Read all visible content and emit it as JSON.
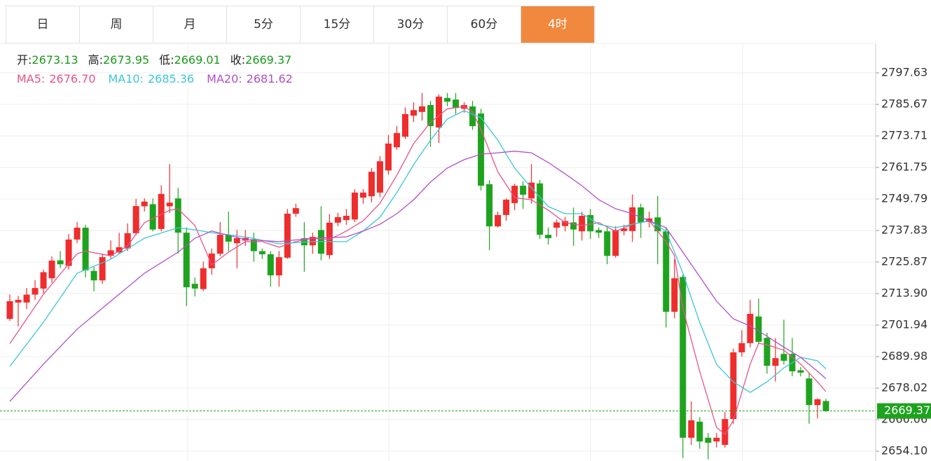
{
  "tabs": [
    {
      "label": "日",
      "active": false
    },
    {
      "label": "周",
      "active": false
    },
    {
      "label": "月",
      "active": false
    },
    {
      "label": "5分",
      "active": false
    },
    {
      "label": "15分",
      "active": false
    },
    {
      "label": "30分",
      "active": false
    },
    {
      "label": "60分",
      "active": false
    },
    {
      "label": "4时",
      "active": true
    }
  ],
  "chart_data": {
    "type": "candlestick",
    "info_labels": {
      "open": "开:",
      "high": "高:",
      "low": "低:",
      "close": "收:"
    },
    "up_color": "#ee2d2d",
    "down_color": "#1fa31f",
    "grid": true,
    "ylim": [
      2650.38,
      2808.79
    ],
    "yticks": [
      2797.63,
      2785.67,
      2773.71,
      2761.75,
      2749.79,
      2737.83,
      2725.87,
      {
        "value": 2713.9,
        "label": "2713.90"
      },
      2701.94,
      2689.98,
      2678.02,
      2666.06,
      {
        "value": 2654.1,
        "label": "2654.10"
      }
    ],
    "open": [
      2704.3,
      2710.5,
      2710.5,
      2713.5,
      2715.8,
      2719.7,
      2726.5,
      2724.4,
      2734.4,
      2738.9,
      2722.5,
      2718.9,
      2728.2,
      2729.5,
      2731,
      2736.8,
      2747,
      2747.8,
      2738.4,
      2747,
      2750,
      2737,
      2717.6,
      2715.6,
      2723.5,
      2729,
      2736.2,
      2733,
      2734,
      2734.5,
      2730,
      2728.8,
      2720.8,
      2727.5,
      2744.2,
      2734.9,
      2732.2,
      2738,
      2728.5,
      2740.8,
      2741.8,
      2742,
      2750.3,
      2750.8,
      2752.2,
      2760.6,
      2769.4,
      2773.4,
      2781.4,
      2782.8,
      2785.4,
      2776.9,
      2788.1,
      2787.5,
      2784,
      2784.9,
      2782.2,
      2755.4,
      2739.4,
      2743.7,
      2748.2,
      2754.8,
      2750,
      2755.7,
      2736.2,
      2738.9,
      2739.5,
      2740.9,
      2737.5,
      2743.7,
      2738,
      2737.5,
      2728.2,
      2737.6,
      2737.6,
      2746.6,
      2741,
      2742.8,
      2737.5,
      2707,
      2720.2,
      2659.2,
      2665.3,
      2659.2,
      2657.8,
      2656.5,
      2666.3,
      2691.6,
      2695.1,
      2705.2,
      2697.1,
      2686.5,
      2691,
      2691,
      2684.8,
      2681.7,
      2671.6,
      2673.13
    ],
    "high": [
      2713.5,
      2713,
      2716,
      2719,
      2723,
      2728,
      2730,
      2736.5,
      2741,
      2740,
      2724,
      2729,
      2734,
      2737,
      2740.5,
      2749.8,
      2750,
      2750,
      2755,
      2763,
      2754,
      2739,
      2720,
      2726,
      2731,
      2741,
      2745,
      2738,
      2738,
      2737,
      2731,
      2730,
      2730,
      2746,
      2748,
      2741,
      2737,
      2747,
      2744,
      2744.5,
      2746,
      2753.5,
      2753.5,
      2761.5,
      2766,
      2774,
      2777.5,
      2784.5,
      2786.5,
      2790,
      2787,
      2789.5,
      2790,
      2790,
      2786.5,
      2787,
      2784,
      2757,
      2745,
      2750,
      2755.5,
      2756.5,
      2763,
      2757,
      2739,
      2742,
      2743,
      2746.5,
      2745,
      2746,
      2739,
      2739,
      2739.5,
      2740,
      2751.5,
      2748,
      2745,
      2751,
      2739,
      2727,
      2721,
      2673,
      2667,
      2661,
      2661,
      2669,
      2693,
      2700,
      2711.5,
      2712,
      2699,
      2697,
      2704,
      2697,
      2686,
      2684,
      2674.2,
      2673.95
    ],
    "low": [
      2703.5,
      2701.5,
      2708,
      2711.5,
      2714,
      2718,
      2723.5,
      2723,
      2733,
      2720,
      2714.7,
      2717.5,
      2727,
      2729,
      2730,
      2736,
      2745,
      2737.5,
      2737.5,
      2744.5,
      2729,
      2709.2,
      2712.8,
      2714.8,
      2721,
      2728,
      2730,
      2723.5,
      2732,
      2726,
      2727,
      2716.5,
      2716.5,
      2727,
      2743,
      2722.2,
      2729,
      2726.5,
      2727,
      2739.5,
      2740,
      2741,
      2748,
      2748.5,
      2750.5,
      2759,
      2768.5,
      2772.5,
      2779,
      2779.5,
      2769.5,
      2771,
      2785,
      2782,
      2782.5,
      2776,
      2753,
      2730.4,
      2739,
      2741.5,
      2745.5,
      2746,
      2748,
      2734.6,
      2732.5,
      2735.5,
      2737.5,
      2732,
      2734,
      2734.6,
      2735,
      2725,
      2727.5,
      2736,
      2733.5,
      2735,
      2739,
      2725,
      2701,
      2704.5,
      2651.5,
      2656.5,
      2655,
      2651,
      2655.5,
      2655.5,
      2664.5,
      2690,
      2693.5,
      2695,
      2683.5,
      2680.5,
      2687,
      2682.5,
      2682.5,
      2664.5,
      2666.5,
      2669.01
    ],
    "close": [
      2711,
      2711.5,
      2713.5,
      2716,
      2722,
      2726.4,
      2725,
      2734.4,
      2738.9,
      2722.7,
      2718.9,
      2727.7,
      2730.3,
      2731.5,
      2736.8,
      2747.1,
      2748.8,
      2738.2,
      2751.7,
      2748.4,
      2737,
      2716.3,
      2715.8,
      2723.5,
      2729.1,
      2736.2,
      2733.6,
      2734.9,
      2735,
      2730,
      2728.8,
      2720.8,
      2727.7,
      2744.2,
      2746.3,
      2732.2,
      2735.4,
      2729,
      2740.8,
      2742.9,
      2743.4,
      2752.2,
      2752.2,
      2760.1,
      2764.1,
      2770.8,
      2774.8,
      2782,
      2783.5,
      2784.9,
      2777.4,
      2788.6,
      2786.7,
      2784.3,
      2785.4,
      2777.4,
      2754.8,
      2739.4,
      2743.7,
      2749.5,
      2754.8,
      2751.4,
      2756,
      2736.2,
      2734.9,
      2740.9,
      2741.4,
      2738.2,
      2743.4,
      2737.5,
      2737,
      2728.2,
      2738,
      2738.6,
      2746.6,
      2740.9,
      2742.4,
      2737.5,
      2707,
      2719.7,
      2659.2,
      2665.8,
      2657.8,
      2657.3,
      2659.2,
      2666.3,
      2691.6,
      2695.1,
      2706.2,
      2695.6,
      2686.5,
      2689.4,
      2688.4,
      2684.4,
      2683.9,
      2671.6,
      2673.8,
      2669.37
    ],
    "series": [
      {
        "name": "MA5:",
        "color": "#e8538a",
        "current": "2676.70",
        "x": [
          0,
          4,
          8,
          9,
          12,
          14,
          16,
          19,
          20,
          22,
          23,
          24,
          26,
          28,
          30,
          32,
          34,
          36,
          38,
          40,
          42,
          44,
          46,
          48,
          50,
          52,
          54,
          55,
          56,
          58,
          60,
          62,
          64,
          66,
          68,
          70,
          72,
          74,
          76,
          78,
          79,
          80,
          82,
          84,
          85,
          86,
          88,
          89,
          90,
          92,
          94,
          96,
          97
        ],
        "values": [
          2694.9,
          2713.6,
          2729,
          2730,
          2728.2,
          2732,
          2740.8,
          2745.5,
          2746,
          2739.7,
          2732.3,
          2724.8,
          2729.6,
          2733.6,
          2733.6,
          2731.5,
          2733.6,
          2734.9,
          2734.4,
          2737.6,
          2741.5,
          2748.2,
          2758.8,
          2770.8,
          2778.8,
          2784,
          2784.9,
          2782.8,
          2776.1,
          2760.1,
          2750.3,
          2749.5,
          2745.5,
          2740.8,
          2739.7,
          2740.8,
          2737.5,
          2740.2,
          2741.5,
          2733.6,
          2728.3,
          2708.3,
          2684.4,
          2663.1,
          2660.5,
          2665.8,
          2687.1,
          2695,
          2694.5,
          2692.4,
          2687.1,
          2680.4,
          2676.7
        ]
      },
      {
        "name": "MA10:",
        "color": "#3cc6d6",
        "current": "2685.36",
        "x": [
          0,
          4,
          8,
          12,
          16,
          20,
          22,
          24,
          28,
          32,
          36,
          40,
          42,
          44,
          46,
          48,
          50,
          52,
          54,
          56,
          58,
          60,
          62,
          64,
          66,
          68,
          70,
          72,
          74,
          76,
          78,
          80,
          82,
          84,
          86,
          88,
          90,
          92,
          94,
          96,
          97
        ],
        "values": [
          2686.3,
          2703,
          2721.6,
          2726.9,
          2734.9,
          2738.9,
          2738.1,
          2737,
          2735.4,
          2732.8,
          2733.6,
          2733.6,
          2737.6,
          2742.9,
          2752.2,
          2762.8,
          2772.1,
          2780.1,
          2783.3,
          2780.6,
          2772.1,
          2761.5,
          2754,
          2746.9,
          2744.2,
          2744.2,
          2740.2,
          2738.9,
          2740.2,
          2741.5,
          2737.6,
          2721.6,
          2703,
          2687,
          2680.4,
          2676.4,
          2680.4,
          2685.7,
          2689.7,
          2688.4,
          2685.36
        ]
      },
      {
        "name": "MA20:",
        "color": "#b04fc8",
        "current": "2681.62",
        "x": [
          0,
          4,
          8,
          12,
          16,
          20,
          22,
          24,
          28,
          32,
          36,
          40,
          42,
          44,
          46,
          48,
          50,
          52,
          54,
          56,
          58,
          60,
          62,
          64,
          66,
          68,
          70,
          72,
          74,
          76,
          78,
          80,
          82,
          84,
          86,
          88,
          90,
          92,
          94,
          96,
          97
        ],
        "values": [
          2673,
          2687.1,
          2700.4,
          2711,
          2721.6,
          2729.6,
          2734.9,
          2737.6,
          2734.4,
          2733.6,
          2734.9,
          2735.4,
          2737.6,
          2740.2,
          2744.2,
          2749.5,
          2756.2,
          2761.5,
          2764.7,
          2766.8,
          2767.3,
          2767.9,
          2767.3,
          2763.6,
          2759.3,
          2754.8,
          2749.5,
          2746.1,
          2744.2,
          2741.5,
          2738.9,
          2729.6,
          2720.3,
          2711,
          2704.3,
          2701.6,
          2697.7,
          2693.6,
          2689.7,
          2684.4,
          2681.62
        ]
      }
    ]
  }
}
